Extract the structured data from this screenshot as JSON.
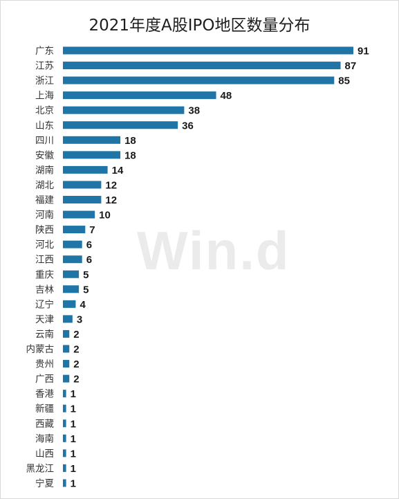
{
  "title": "2021年度A股IPO地区数量分布",
  "watermark": "Win.d",
  "colors": {
    "bar": "#1f75a6",
    "background": "#ffffff"
  },
  "chart_data": {
    "type": "bar",
    "orientation": "horizontal",
    "title": "2021年度A股IPO地区数量分布",
    "xlabel": "",
    "ylabel": "",
    "grid": false,
    "legend": "none",
    "xlim": [
      0,
      91
    ],
    "categories": [
      "广东",
      "江苏",
      "浙江",
      "上海",
      "北京",
      "山东",
      "四川",
      "安徽",
      "湖南",
      "湖北",
      "福建",
      "河南",
      "陕西",
      "河北",
      "江西",
      "重庆",
      "吉林",
      "辽宁",
      "天津",
      "云南",
      "内蒙古",
      "贵州",
      "广西",
      "香港",
      "新疆",
      "西藏",
      "海南",
      "山西",
      "黑龙江",
      "宁夏"
    ],
    "values": [
      91,
      87,
      85,
      48,
      38,
      36,
      18,
      18,
      14,
      12,
      12,
      10,
      7,
      6,
      6,
      5,
      5,
      4,
      3,
      2,
      2,
      2,
      2,
      1,
      1,
      1,
      1,
      1,
      1,
      1
    ]
  }
}
